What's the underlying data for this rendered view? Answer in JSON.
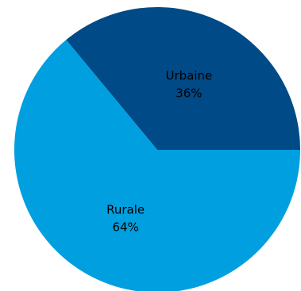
{
  "chart_data": {
    "type": "pie",
    "slices": [
      {
        "label": "Urbaine",
        "value": 36,
        "value_label": "36%",
        "color": "#004A87"
      },
      {
        "label": "Rurale",
        "value": 64,
        "value_label": "64%",
        "color": "#009FE0"
      }
    ],
    "legend": "none"
  }
}
